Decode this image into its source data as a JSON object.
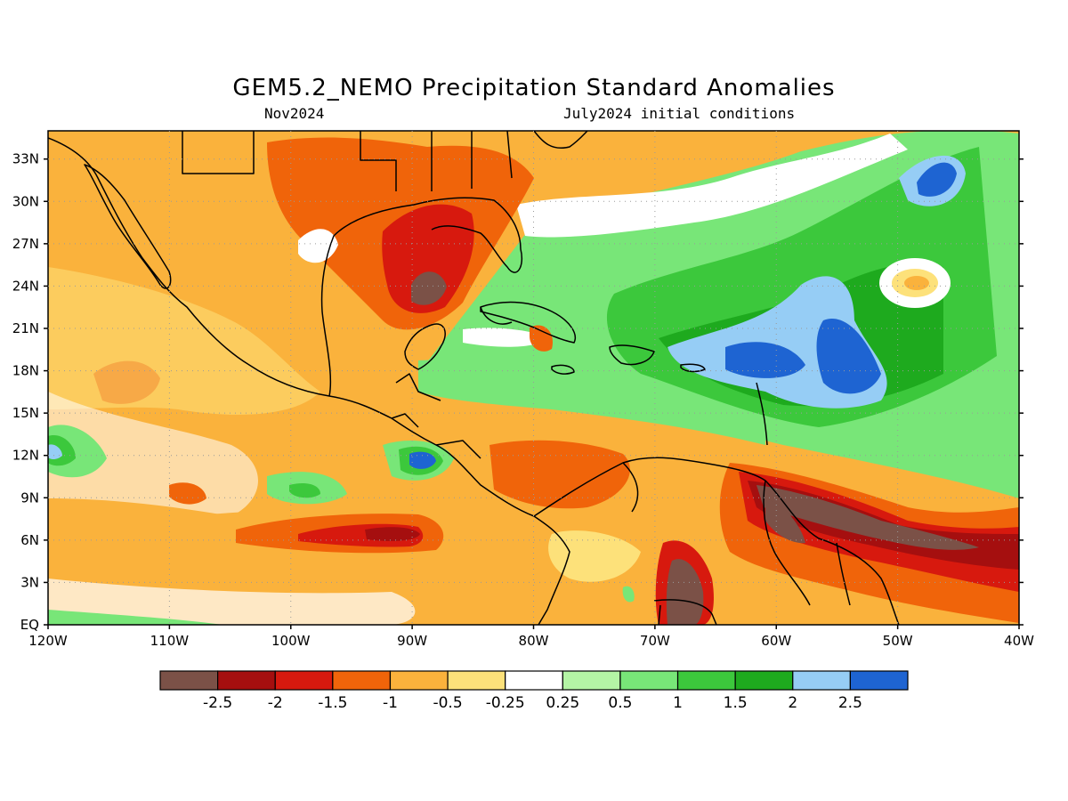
{
  "map": {
    "title": "GEM5.2_NEMO Precipitation Standard Anomalies",
    "valid_month": "Nov2024",
    "initial_conditions": "July2024 initial conditions",
    "lat_labels": [
      "EQ",
      "3N",
      "6N",
      "9N",
      "12N",
      "15N",
      "18N",
      "21N",
      "24N",
      "27N",
      "30N",
      "33N"
    ],
    "lon_labels": [
      "120W",
      "110W",
      "100W",
      "90W",
      "80W",
      "70W",
      "60W",
      "50W",
      "40W"
    ],
    "extent": {
      "lon_min": -120,
      "lon_max": -40,
      "lat_min": 0,
      "lat_max": 35
    }
  },
  "colorbar": {
    "colors": [
      "#7b5147",
      "#a50f0f",
      "#d7190e",
      "#f0640a",
      "#fab23c",
      "#fde17a",
      "#ffffff",
      "#b4f5a5",
      "#78e678",
      "#3cc83c",
      "#1eaa1e",
      "#96cdf5",
      "#1e64d2"
    ],
    "labels": [
      "-2.5",
      "-2",
      "-1.5",
      "-1",
      "-0.5",
      "-0.25",
      "0.25",
      "0.5",
      "1",
      "1.5",
      "2",
      "2.5"
    ]
  }
}
